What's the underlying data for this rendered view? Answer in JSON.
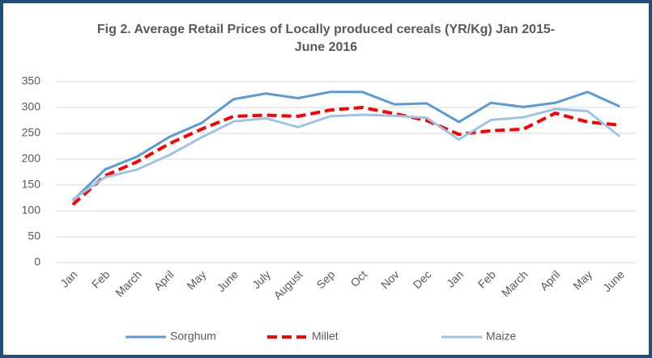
{
  "chart_data": {
    "type": "line",
    "title": "Fig 2. Average  Retail Prices of Locally produced cereals (YR/Kg) Jan 2015- June 2016",
    "categories": [
      "Jan",
      "Feb",
      "March",
      "April",
      "May",
      "June",
      "July",
      "August",
      "Sep",
      "Oct",
      "Nov",
      "Dec",
      "Jan",
      "Feb",
      "March",
      "April",
      "May",
      "June"
    ],
    "series": [
      {
        "name": "Sorghum",
        "color": "#5b9bd5",
        "line_style": "solid",
        "values": [
          120,
          180,
          205,
          243,
          270,
          316,
          327,
          318,
          330,
          330,
          306,
          308,
          272,
          309,
          301,
          309,
          330,
          302
        ]
      },
      {
        "name": "Millet",
        "color": "#ff0000",
        "line_style": "dashed",
        "values": [
          112,
          168,
          195,
          230,
          258,
          283,
          285,
          283,
          295,
          300,
          288,
          275,
          248,
          255,
          258,
          289,
          272,
          266
        ]
      },
      {
        "name": "Maize",
        "color": "#9dc3e6",
        "line_style": "solid",
        "values": [
          122,
          165,
          180,
          208,
          242,
          273,
          279,
          262,
          283,
          286,
          284,
          280,
          238,
          276,
          281,
          297,
          293,
          244
        ]
      }
    ],
    "ylim": [
      0,
      350
    ],
    "yticks": [
      0,
      50,
      100,
      150,
      200,
      250,
      300,
      350
    ],
    "grid": true,
    "legend": "bottom"
  }
}
